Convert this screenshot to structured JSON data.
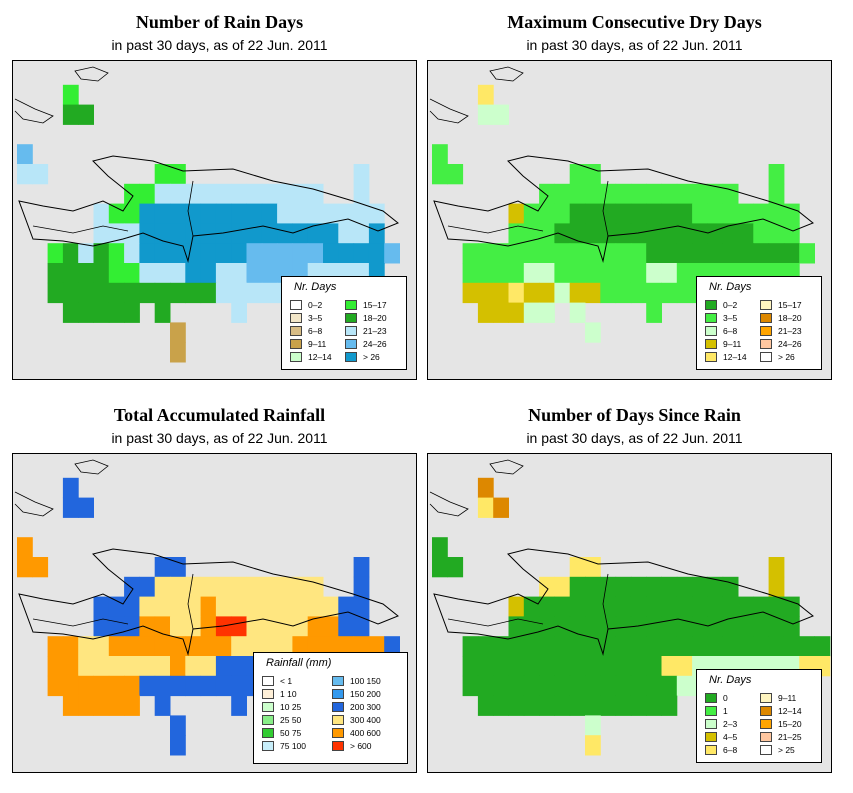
{
  "panels": [
    {
      "id": "rain-days",
      "title": "Number of Rain Days",
      "subtitle": "in past 30 days, as of  22 Jun. 2011",
      "legend_title": "Nr. Days",
      "legend": [
        {
          "label": "0–2",
          "color": "#ffffff"
        },
        {
          "label": "3–5",
          "color": "#f3e7c9"
        },
        {
          "label": "6–8",
          "color": "#d8bd86"
        },
        {
          "label": "9–11",
          "color": "#c9a24a"
        },
        {
          "label": "12–14",
          "color": "#ccffcc"
        },
        {
          "label": "15–17",
          "color": "#33ee33"
        },
        {
          "label": "18–20",
          "color": "#22aa22"
        },
        {
          "label": "21–23",
          "color": "#b8e6f8"
        },
        {
          "label": "24–26",
          "color": "#66bbee"
        },
        {
          "label": "> 26",
          "color": "#1199cc"
        }
      ]
    },
    {
      "id": "max-dry-days",
      "title": "Maximum Consecutive Dry Days",
      "subtitle": "in past 30 days, as of  22 Jun. 2011",
      "legend_title": "Nr. Days",
      "legend": [
        {
          "label": "0–2",
          "color": "#22aa22"
        },
        {
          "label": "3–5",
          "color": "#44ee44"
        },
        {
          "label": "6–8",
          "color": "#ccffcc"
        },
        {
          "label": "9–11",
          "color": "#d4c000"
        },
        {
          "label": "12–14",
          "color": "#ffe866"
        },
        {
          "label": "15–17",
          "color": "#fff5c0"
        },
        {
          "label": "18–20",
          "color": "#dd8800"
        },
        {
          "label": "21–23",
          "color": "#ffa500"
        },
        {
          "label": "24–26",
          "color": "#ffc7a0"
        },
        {
          "label": "> 26",
          "color": "#ffffff"
        }
      ]
    },
    {
      "id": "total-rainfall",
      "title": "Total Accumulated Rainfall",
      "subtitle": "in past 30 days, as of  22 Jun. 2011",
      "legend_title": "Rainfall (mm)",
      "legend": [
        {
          "label": "< 1",
          "color": "#ffffff"
        },
        {
          "label": "1    10",
          "color": "#fff0d8"
        },
        {
          "label": "10    25",
          "color": "#ccffcc"
        },
        {
          "label": "25    50",
          "color": "#88ee88"
        },
        {
          "label": "50    75",
          "color": "#33cc33"
        },
        {
          "label": "75   100",
          "color": "#c8eefa"
        },
        {
          "label": "100   150",
          "color": "#66bbee"
        },
        {
          "label": "150   200",
          "color": "#3399ee"
        },
        {
          "label": "200   300",
          "color": "#2266dd"
        },
        {
          "label": "300   400",
          "color": "#ffe680"
        },
        {
          "label": "400   600",
          "color": "#ff9900"
        },
        {
          "label": "> 600",
          "color": "#ff3300"
        }
      ]
    },
    {
      "id": "days-since-rain",
      "title": "Number of Days Since Rain",
      "subtitle": "in past 30 days, as of  22 Jun. 2011",
      "legend_title": "Nr. Days",
      "legend": [
        {
          "label": "0",
          "color": "#22aa22"
        },
        {
          "label": "1",
          "color": "#44ee44"
        },
        {
          "label": "2–3",
          "color": "#ccffcc"
        },
        {
          "label": "4–5",
          "color": "#d4c000"
        },
        {
          "label": "6–8",
          "color": "#ffe866"
        },
        {
          "label": "9–11",
          "color": "#fff5c0"
        },
        {
          "label": "12–14",
          "color": "#dd8800"
        },
        {
          "label": "15–20",
          "color": "#ffa500"
        },
        {
          "label": "21–25",
          "color": "#ffc7a0"
        },
        {
          "label": "> 25",
          "color": "#ffffff"
        }
      ]
    }
  ]
}
